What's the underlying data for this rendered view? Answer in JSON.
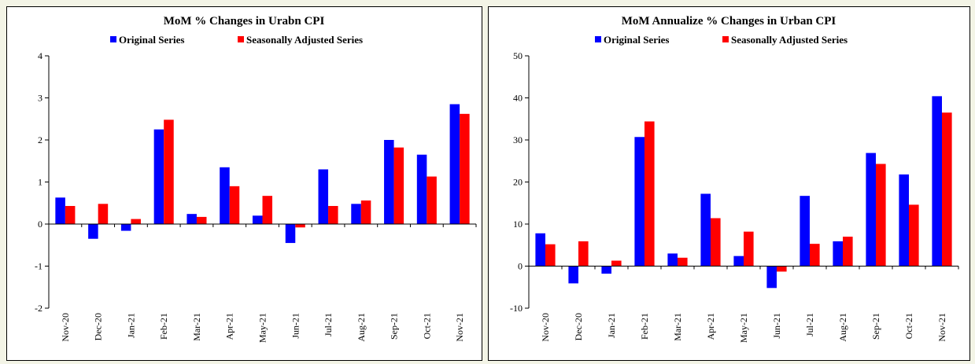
{
  "chart_data": [
    {
      "type": "bar",
      "title": "MoM % Changes in Urabn CPI",
      "categories": [
        "Nov-20",
        "Dec-20",
        "Jan-21",
        "Feb-21",
        "Mar-21",
        "Apr-21",
        "May-21",
        "Jun-21",
        "Jul-21",
        "Aug-21",
        "Sep-21",
        "Oct-21",
        "Nov-21"
      ],
      "series": [
        {
          "name": "Original Series",
          "color": "#0000ff",
          "values": [
            0.63,
            -0.35,
            -0.16,
            2.25,
            0.24,
            1.35,
            0.2,
            -0.45,
            1.3,
            0.48,
            2.0,
            1.65,
            2.85
          ]
        },
        {
          "name": "Seasonally Adjusted Series",
          "color": "#ff0000",
          "values": [
            0.43,
            0.48,
            0.12,
            2.48,
            0.17,
            0.9,
            0.67,
            -0.08,
            0.43,
            0.56,
            1.82,
            1.13,
            2.62
          ]
        }
      ],
      "ylim": [
        -2,
        4
      ],
      "yticks": [
        -2,
        -1,
        0,
        1,
        2,
        3,
        4
      ]
    },
    {
      "type": "bar",
      "title": "MoM Annualize % Changes in Urban CPI",
      "categories": [
        "Nov-20",
        "Dec-20",
        "Jan-21",
        "Feb-21",
        "Mar-21",
        "Apr-21",
        "May-21",
        "Jun-21",
        "Jul-21",
        "Aug-21",
        "Sep-21",
        "Oct-21",
        "Nov-21"
      ],
      "series": [
        {
          "name": "Original Series",
          "color": "#0000ff",
          "values": [
            7.8,
            -4.1,
            -1.8,
            30.7,
            3.0,
            17.2,
            2.4,
            -5.2,
            16.7,
            5.9,
            26.9,
            21.8,
            40.4
          ]
        },
        {
          "name": "Seasonally Adjusted Series",
          "color": "#ff0000",
          "values": [
            5.2,
            5.9,
            1.3,
            34.4,
            2.0,
            11.4,
            8.2,
            -1.3,
            5.3,
            7.0,
            24.3,
            14.6,
            36.5
          ]
        }
      ],
      "ylim": [
        -10,
        50
      ],
      "yticks": [
        -10,
        0,
        10,
        20,
        30,
        40,
        50
      ]
    }
  ]
}
